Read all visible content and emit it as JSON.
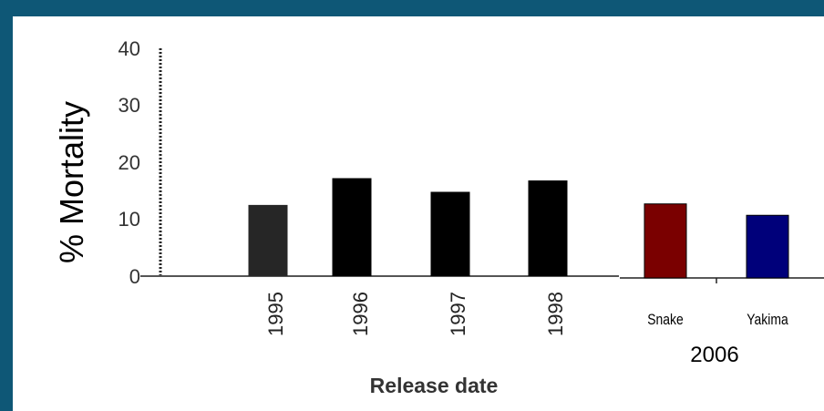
{
  "chart_data": [
    {
      "type": "bar",
      "categories": [
        "1995",
        "1996",
        "1997",
        "1998"
      ],
      "values": [
        12.5,
        17.2,
        14.8,
        16.8
      ],
      "ylabel": "% Mortality",
      "xlabel": "Release date",
      "ylim": [
        0,
        40
      ],
      "yticks": [
        "0",
        "10",
        "20",
        "30",
        "40"
      ],
      "bar_color": "#000000"
    },
    {
      "type": "bar",
      "categories": [
        "Snake",
        "Yakima"
      ],
      "values": [
        13.0,
        11.0
      ],
      "xlabel": "2006",
      "ylim": [
        0,
        40
      ],
      "bar_colors": [
        "#7a0000",
        "#00007a"
      ]
    }
  ]
}
